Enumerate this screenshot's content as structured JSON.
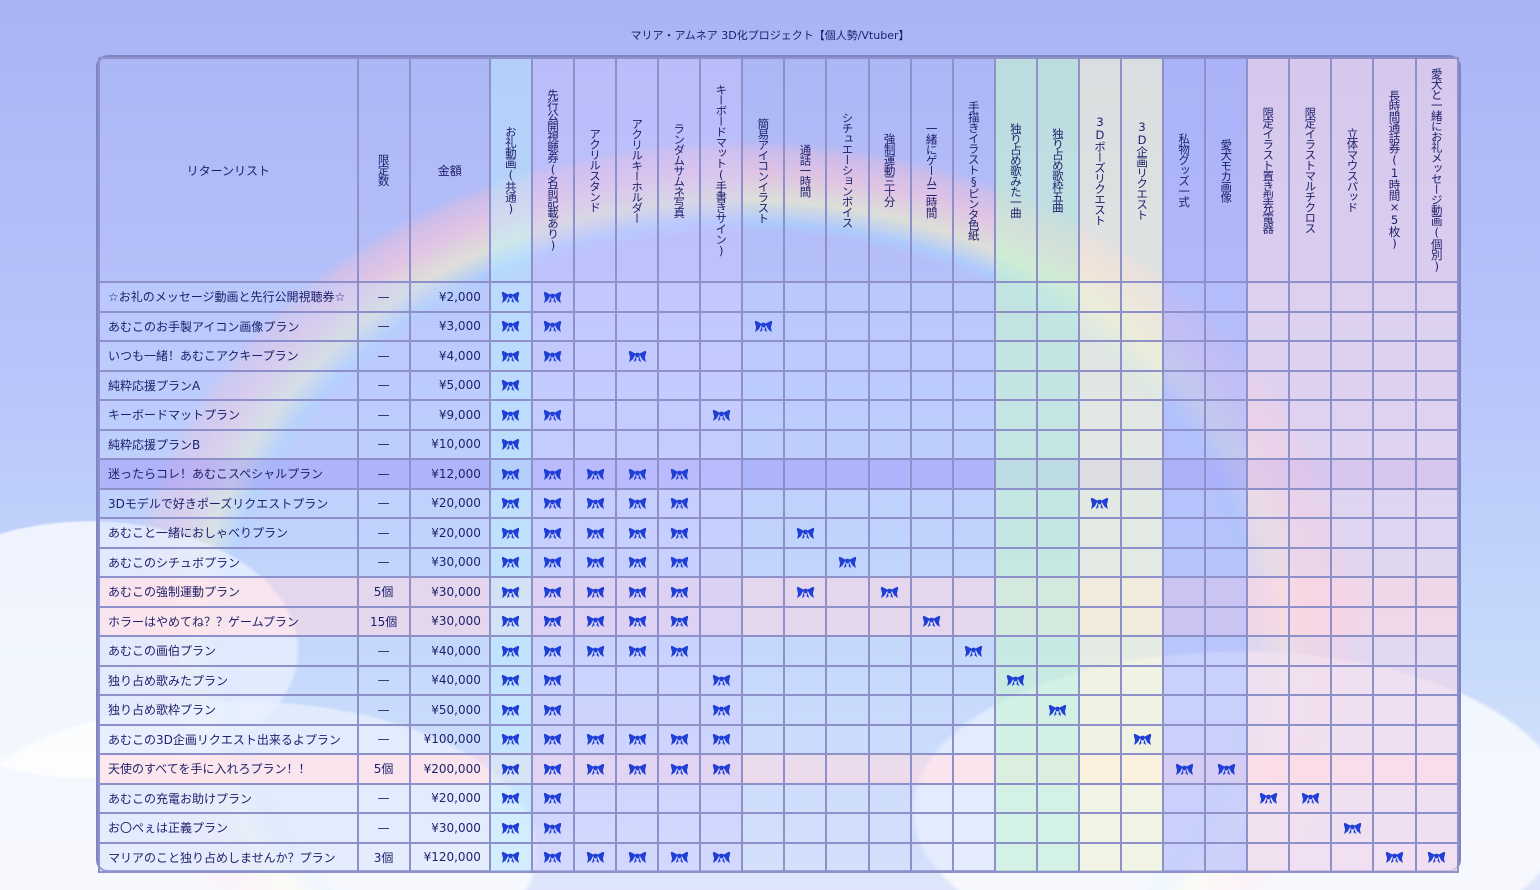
{
  "title": "マリア・アムネア 3D化プロジェクト【個人勢/Vtuber】",
  "accent_color": "#1f3fd6",
  "check_icon": "ribbon-bow-icon",
  "headers": {
    "name": "リターンリスト",
    "limit": "限定数",
    "price": "金額",
    "items": [
      {
        "label": "お礼動画(共通)",
        "tint": "cyan"
      },
      {
        "label": "先行公開視聴券(名前記載あり)",
        "tint": "violet"
      },
      {
        "label": "アクリルスタンド",
        "tint": "violet"
      },
      {
        "label": "アクリルキーホルダー",
        "tint": "violet"
      },
      {
        "label": "ランダムサムネ写真",
        "tint": "violet"
      },
      {
        "label": "キーボードマット(手書きサイン)",
        "tint": "violet"
      },
      {
        "label": "簡易アイコンイラスト",
        "tint": ""
      },
      {
        "label": "通話一時間",
        "tint": ""
      },
      {
        "label": "シチュエーションボイス",
        "tint": ""
      },
      {
        "label": "強制運動三十分",
        "tint": ""
      },
      {
        "label": "一緒にゲーム二時間",
        "tint": ""
      },
      {
        "label": "手描きイラスト§ピンタ色紙",
        "tint": ""
      },
      {
        "label": "独り占め歌みた一曲",
        "tint": "green"
      },
      {
        "label": "独り占め歌枠五曲",
        "tint": "green"
      },
      {
        "label": "3Dポーズリクエスト",
        "tint": "yellow"
      },
      {
        "label": "3D企画リクエスト",
        "tint": "yellow"
      },
      {
        "label": "私物グッズ一式",
        "tint": "blue"
      },
      {
        "label": "愛犬モカ画像",
        "tint": "blue"
      },
      {
        "label": "限定イラスト置き型充電器",
        "tint": "pink"
      },
      {
        "label": "限定イラストマルチクロス",
        "tint": "pink"
      },
      {
        "label": "立体マウスパッド",
        "tint": "pink"
      },
      {
        "label": "長時間通話券(1時間×5枚)",
        "tint": "pink"
      },
      {
        "label": "愛犬と一緒にお礼メッセージ動画(個別)",
        "tint": "pink"
      }
    ]
  },
  "rows": [
    {
      "name": "☆お礼のメッセージ動画と先行公開視聴券☆",
      "limit": "—",
      "price": "¥2,000",
      "style": "normal",
      "checks": [
        0,
        1
      ]
    },
    {
      "name": "あむこのお手製アイコン画像プラン",
      "limit": "—",
      "price": "¥3,000",
      "style": "normal",
      "checks": [
        0,
        1,
        6
      ]
    },
    {
      "name": "いつも一緒！あむこアクキープラン",
      "limit": "—",
      "price": "¥4,000",
      "style": "normal",
      "checks": [
        0,
        1,
        3
      ]
    },
    {
      "name": "純粋応援プランA",
      "limit": "—",
      "price": "¥5,000",
      "style": "normal",
      "checks": [
        0
      ]
    },
    {
      "name": "キーボードマットプラン",
      "limit": "—",
      "price": "¥9,000",
      "style": "normal",
      "checks": [
        0,
        1,
        5
      ]
    },
    {
      "name": "純粋応援プランB",
      "limit": "—",
      "price": "¥10,000",
      "style": "normal",
      "checks": [
        0
      ]
    },
    {
      "name": "迷ったらコレ！あむこスペシャルプラン",
      "limit": "—",
      "price": "¥12,000",
      "style": "hl",
      "checks": [
        0,
        1,
        2,
        3,
        4
      ]
    },
    {
      "name": "3Dモデルで好きポーズリクエストプラン",
      "limit": "—",
      "price": "¥20,000",
      "style": "normal",
      "checks": [
        0,
        1,
        2,
        3,
        4,
        14
      ]
    },
    {
      "name": "あむこと一緒におしゃべりプラン",
      "limit": "—",
      "price": "¥20,000",
      "style": "normal",
      "checks": [
        0,
        1,
        2,
        3,
        4,
        7
      ]
    },
    {
      "name": "あむこのシチュボプラン",
      "limit": "—",
      "price": "¥30,000",
      "style": "normal",
      "checks": [
        0,
        1,
        2,
        3,
        4,
        8
      ]
    },
    {
      "name": "あむこの強制運動プラン",
      "limit": "5個",
      "price": "¥30,000",
      "style": "pink",
      "checks": [
        0,
        1,
        2,
        3,
        4,
        7,
        9
      ]
    },
    {
      "name": "ホラーはやめてね？？ゲームプラン",
      "limit": "15個",
      "price": "¥30,000",
      "style": "pink",
      "checks": [
        0,
        1,
        2,
        3,
        4,
        10
      ]
    },
    {
      "name": "あむこの画伯プラン",
      "limit": "—",
      "price": "¥40,000",
      "style": "normal",
      "checks": [
        0,
        1,
        2,
        3,
        4,
        11
      ]
    },
    {
      "name": "独り占め歌みたプラン",
      "limit": "—",
      "price": "¥40,000",
      "style": "normal",
      "checks": [
        0,
        1,
        5,
        12
      ]
    },
    {
      "name": "独り占め歌枠プラン",
      "limit": "—",
      "price": "¥50,000",
      "style": "normal",
      "checks": [
        0,
        1,
        5,
        13
      ]
    },
    {
      "name": "あむこの3D企画リクエスト出来るよプラン",
      "limit": "—",
      "price": "¥100,000",
      "style": "normal",
      "checks": [
        0,
        1,
        2,
        3,
        4,
        5,
        15
      ]
    },
    {
      "name": "天使のすべてを手に入れろプラン！！",
      "limit": "5個",
      "price": "¥200,000",
      "style": "pink",
      "checks": [
        0,
        1,
        2,
        3,
        4,
        5,
        16,
        17
      ]
    },
    {
      "name": "あむこの充電お助けプラン",
      "limit": "—",
      "price": "¥20,000",
      "style": "normal",
      "checks": [
        0,
        1,
        18,
        19
      ]
    },
    {
      "name": "お〇ぺぇは正義プラン",
      "limit": "—",
      "price": "¥30,000",
      "style": "normal",
      "checks": [
        0,
        1,
        20
      ]
    },
    {
      "name": "マリアのこと独り占めしませんか？プラン",
      "limit": "3個",
      "price": "¥120,000",
      "style": "normal",
      "checks": [
        0,
        1,
        2,
        3,
        4,
        5,
        21,
        22
      ]
    }
  ]
}
